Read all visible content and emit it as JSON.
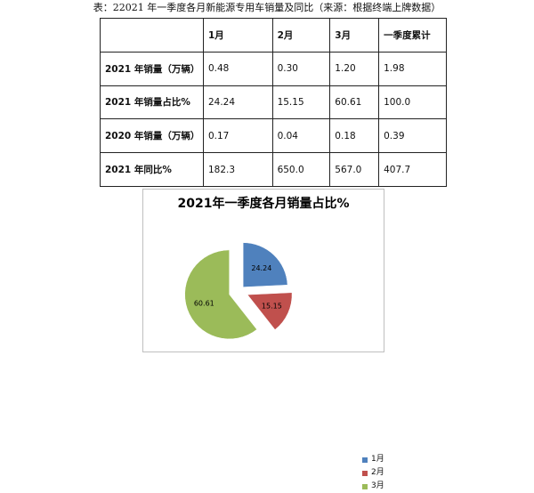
{
  "caption": "表：22021 年一季度各月新能源专用车销量及同比（来源：根据终端上牌数据）",
  "table": {
    "headers": [
      "",
      "1月",
      "2月",
      "3月",
      "一季度累计"
    ],
    "rows": [
      {
        "label": "2021 年销量（万辆）",
        "cells": [
          "0.48",
          "0.30",
          "1.20",
          "1.98"
        ]
      },
      {
        "label": "2021 年销量占比%",
        "cells": [
          "24.24",
          "15.15",
          "60.61",
          "100.0"
        ]
      },
      {
        "label": "2020 年销量（万辆）",
        "cells": [
          "0.17",
          "0.04",
          "0.18",
          "0.39"
        ]
      },
      {
        "label": "2021 年同比%",
        "cells": [
          "182.3",
          "650.0",
          "567.0",
          "407.7"
        ]
      }
    ]
  },
  "chart_data": {
    "type": "pie",
    "title": "2021年一季度各月销量占比%",
    "categories": [
      "1月",
      "2月",
      "3月"
    ],
    "values": [
      24.24,
      15.15,
      60.61
    ],
    "data_labels": [
      "24.24",
      "15.15",
      "60.61"
    ],
    "colors": [
      "#4f81bd",
      "#c0504d",
      "#9bbb59"
    ],
    "exploded": true,
    "legend_position": "right"
  }
}
